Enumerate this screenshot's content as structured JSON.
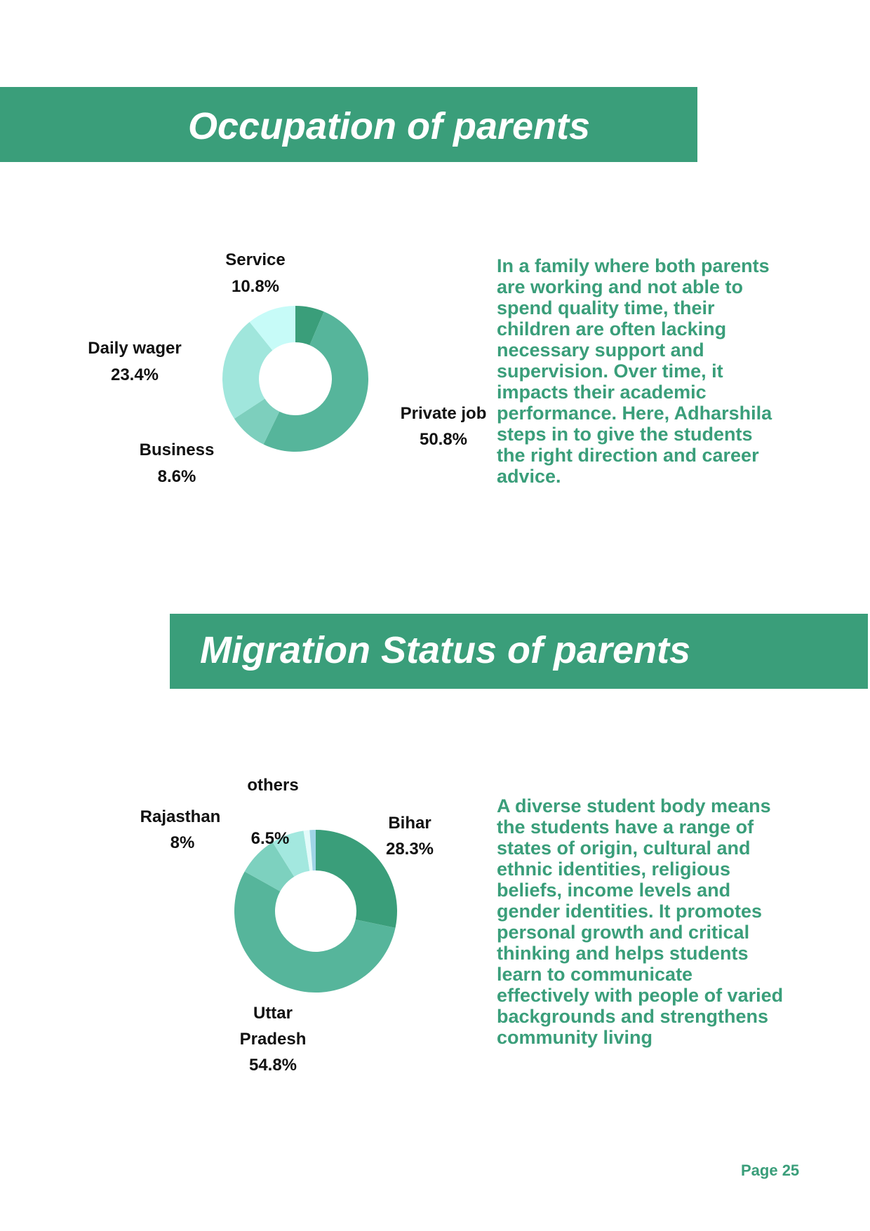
{
  "page_number": "Page 25",
  "chart_data": [
    {
      "type": "donut",
      "title": "Occupation of parents",
      "categories": [
        null,
        "Private job",
        "Business",
        "Daily wager",
        "Service"
      ],
      "values": [
        6.4,
        50.8,
        8.6,
        23.4,
        10.8
      ],
      "value_labels": [
        null,
        "50.8%",
        "8.6%",
        "23.4%",
        "10.8%"
      ],
      "colors": [
        "#3a9e7a",
        "#56b59b",
        "#7dcfbd",
        "#a0e6dc",
        "#c7fbf8"
      ],
      "description": "In a family where both parents are working and not able to spend quality time, their children are often lacking necessary support and supervision. Over time, it impacts their academic performance. Here, Adharshila steps in to give the students the right direction and career advice."
    },
    {
      "type": "donut",
      "title": "Migration Status of parents",
      "categories": [
        "Bihar",
        "Uttar Pradesh",
        "Rajasthan",
        "others",
        null,
        null
      ],
      "values": [
        28.3,
        54.8,
        8,
        6.5,
        1.2,
        1.2
      ],
      "value_labels": [
        "28.3%",
        "54.8%",
        "8%",
        "6.5%",
        null,
        null
      ],
      "colors": [
        "#3a9e7a",
        "#56b59b",
        "#7dd1bf",
        "#a3e8df",
        "#e3fbfa",
        "#9fd4e6"
      ],
      "description": "A diverse student body means the students have a range of states of origin, cultural and ethnic identities, religious beliefs, income levels and gender identities. It promotes personal growth and critical thinking and helps students learn to communicate effectively with people of varied backgrounds and strengthens community living"
    }
  ]
}
